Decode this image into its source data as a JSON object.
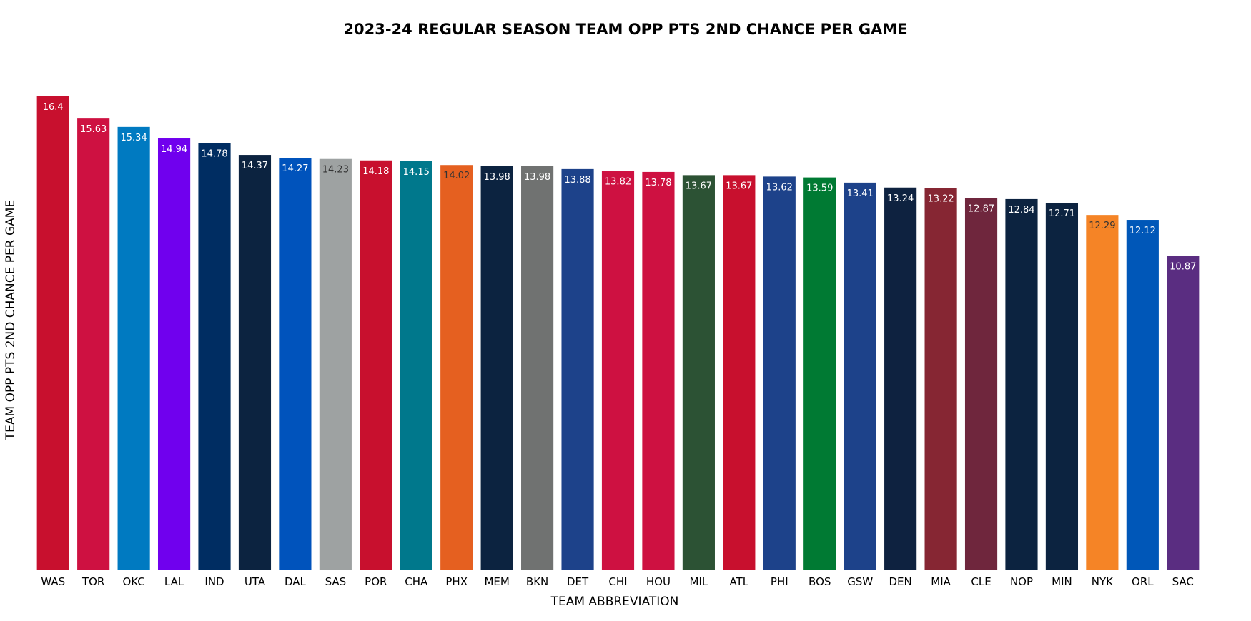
{
  "chart_data": {
    "type": "bar",
    "title": "2023-24 REGULAR SEASON TEAM OPP PTS 2ND CHANCE PER GAME",
    "xlabel": "TEAM ABBREVIATION",
    "ylabel": "TEAM OPP PTS 2ND CHANCE PER GAME",
    "ylim": [
      0,
      16.4
    ],
    "grid": false,
    "legend": "none",
    "categories": [
      "WAS",
      "TOR",
      "OKC",
      "LAL",
      "IND",
      "UTA",
      "DAL",
      "SAS",
      "POR",
      "CHA",
      "PHX",
      "MEM",
      "BKN",
      "DET",
      "CHI",
      "HOU",
      "MIL",
      "ATL",
      "PHI",
      "BOS",
      "GSW",
      "DEN",
      "MIA",
      "CLE",
      "NOP",
      "MIN",
      "NYK",
      "ORL",
      "SAC"
    ],
    "values": [
      16.4,
      15.63,
      15.34,
      14.94,
      14.78,
      14.37,
      14.27,
      14.23,
      14.18,
      14.15,
      14.02,
      13.98,
      13.98,
      13.88,
      13.82,
      13.78,
      13.67,
      13.67,
      13.62,
      13.59,
      13.41,
      13.24,
      13.22,
      12.87,
      12.84,
      12.71,
      12.29,
      12.12,
      10.87
    ],
    "value_labels": [
      "16.4",
      "15.63",
      "15.34",
      "14.94",
      "14.78",
      "14.37",
      "14.27",
      "14.23",
      "14.18",
      "14.15",
      "14.02",
      "13.98",
      "13.98",
      "13.88",
      "13.82",
      "13.78",
      "13.67",
      "13.67",
      "13.62",
      "13.59",
      "13.41",
      "13.24",
      "13.22",
      "12.87",
      "12.84",
      "12.71",
      "12.29",
      "12.12",
      "10.87"
    ],
    "colors": [
      "#c8102e",
      "#ce1141",
      "#007ac1",
      "#7000ee",
      "#002d62",
      "#0c2340",
      "#0053bc",
      "#9ea2a2",
      "#c8102e",
      "#00788c",
      "#e56020",
      "#0c2340",
      "#707271",
      "#1d428a",
      "#ce1141",
      "#ce1141",
      "#2c5234",
      "#c8102e",
      "#1d428a",
      "#007a33",
      "#1d428a",
      "#0e2240",
      "#862633",
      "#6f263d",
      "#0c2340",
      "#0c2340",
      "#f58426",
      "#0057b8",
      "#5a2d81"
    ],
    "label_colors": [
      "#ffffff",
      "#ffffff",
      "#ffffff",
      "#ffffff",
      "#ffffff",
      "#ffffff",
      "#ffffff",
      "#333333",
      "#ffffff",
      "#ffffff",
      "#333333",
      "#ffffff",
      "#ffffff",
      "#ffffff",
      "#ffffff",
      "#ffffff",
      "#ffffff",
      "#ffffff",
      "#ffffff",
      "#ffffff",
      "#ffffff",
      "#ffffff",
      "#ffffff",
      "#ffffff",
      "#ffffff",
      "#ffffff",
      "#333333",
      "#ffffff",
      "#ffffff"
    ]
  }
}
